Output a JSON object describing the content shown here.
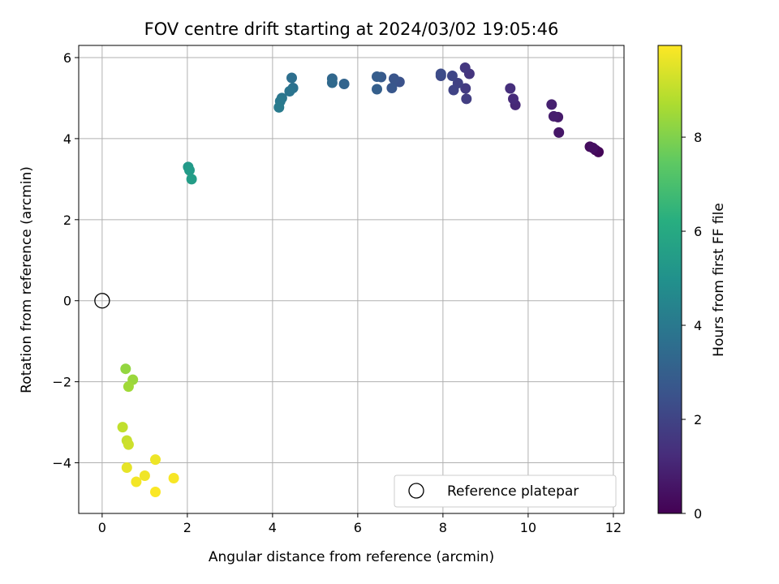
{
  "chart_data": {
    "type": "scatter",
    "title": "FOV centre drift starting at 2024/03/02 19:05:46",
    "xlabel": "Angular distance from reference (arcmin)",
    "ylabel": "Rotation from reference (arcmin)",
    "xlim": [
      -0.55,
      12.25
    ],
    "ylim": [
      -5.25,
      6.3
    ],
    "xticks": [
      0,
      2,
      4,
      6,
      8,
      10,
      12
    ],
    "yticks": [
      -4,
      -2,
      0,
      2,
      4,
      6
    ],
    "grid": true,
    "colormap": "viridis",
    "colorbar": {
      "label": "Hours from first FF file",
      "range": [
        0,
        9.95
      ],
      "ticks": [
        0,
        2,
        4,
        6,
        8
      ]
    },
    "reference": {
      "label": "Reference platepar",
      "x": 0,
      "y": 0
    },
    "legend": {
      "placement": "lower-right",
      "entries": [
        "Reference platepar"
      ]
    },
    "points": [
      {
        "x": 11.65,
        "y": 3.67,
        "hours": 0.1
      },
      {
        "x": 11.58,
        "y": 3.72,
        "hours": 0.2
      },
      {
        "x": 11.45,
        "y": 3.8,
        "hours": 0.3
      },
      {
        "x": 11.52,
        "y": 3.77,
        "hours": 0.4
      },
      {
        "x": 10.72,
        "y": 4.15,
        "hours": 0.6
      },
      {
        "x": 10.7,
        "y": 4.53,
        "hours": 0.7
      },
      {
        "x": 10.6,
        "y": 4.55,
        "hours": 0.8
      },
      {
        "x": 10.55,
        "y": 4.84,
        "hours": 0.9
      },
      {
        "x": 9.7,
        "y": 4.83,
        "hours": 1.1
      },
      {
        "x": 9.65,
        "y": 4.98,
        "hours": 1.2
      },
      {
        "x": 9.58,
        "y": 5.24,
        "hours": 1.3
      },
      {
        "x": 8.62,
        "y": 5.6,
        "hours": 1.5
      },
      {
        "x": 8.52,
        "y": 5.75,
        "hours": 1.6
      },
      {
        "x": 8.53,
        "y": 5.24,
        "hours": 1.7
      },
      {
        "x": 8.55,
        "y": 4.98,
        "hours": 1.8
      },
      {
        "x": 8.35,
        "y": 5.37,
        "hours": 1.9
      },
      {
        "x": 8.25,
        "y": 5.2,
        "hours": 2.0
      },
      {
        "x": 8.22,
        "y": 5.55,
        "hours": 2.1
      },
      {
        "x": 7.95,
        "y": 5.55,
        "hours": 2.2
      },
      {
        "x": 7.95,
        "y": 5.6,
        "hours": 2.3
      },
      {
        "x": 6.98,
        "y": 5.4,
        "hours": 2.5
      },
      {
        "x": 6.85,
        "y": 5.48,
        "hours": 2.6
      },
      {
        "x": 6.8,
        "y": 5.25,
        "hours": 2.7
      },
      {
        "x": 6.55,
        "y": 5.52,
        "hours": 2.8
      },
      {
        "x": 6.45,
        "y": 5.53,
        "hours": 2.9
      },
      {
        "x": 6.45,
        "y": 5.22,
        "hours": 3.0
      },
      {
        "x": 5.68,
        "y": 5.35,
        "hours": 3.2
      },
      {
        "x": 5.4,
        "y": 5.48,
        "hours": 3.3
      },
      {
        "x": 5.4,
        "y": 5.38,
        "hours": 3.4
      },
      {
        "x": 4.45,
        "y": 5.5,
        "hours": 3.6
      },
      {
        "x": 4.48,
        "y": 5.25,
        "hours": 3.7
      },
      {
        "x": 4.4,
        "y": 5.17,
        "hours": 3.8
      },
      {
        "x": 4.22,
        "y": 5.0,
        "hours": 3.9
      },
      {
        "x": 4.18,
        "y": 4.92,
        "hours": 4.0
      },
      {
        "x": 4.15,
        "y": 4.77,
        "hours": 4.1
      },
      {
        "x": 2.02,
        "y": 3.3,
        "hours": 5.3
      },
      {
        "x": 2.05,
        "y": 3.22,
        "hours": 5.4
      },
      {
        "x": 2.1,
        "y": 3.0,
        "hours": 5.5
      },
      {
        "x": 0.55,
        "y": -1.68,
        "hours": 8.3
      },
      {
        "x": 0.72,
        "y": -1.95,
        "hours": 8.4
      },
      {
        "x": 0.62,
        "y": -2.12,
        "hours": 8.5
      },
      {
        "x": 0.48,
        "y": -3.12,
        "hours": 9.0
      },
      {
        "x": 0.58,
        "y": -3.45,
        "hours": 9.1
      },
      {
        "x": 0.62,
        "y": -3.55,
        "hours": 9.2
      },
      {
        "x": 0.58,
        "y": -4.12,
        "hours": 9.6
      },
      {
        "x": 1.25,
        "y": -3.92,
        "hours": 9.7
      },
      {
        "x": 1.0,
        "y": -4.32,
        "hours": 9.75
      },
      {
        "x": 0.8,
        "y": -4.47,
        "hours": 9.8
      },
      {
        "x": 1.68,
        "y": -4.38,
        "hours": 9.85
      },
      {
        "x": 1.25,
        "y": -4.72,
        "hours": 9.9
      }
    ]
  }
}
